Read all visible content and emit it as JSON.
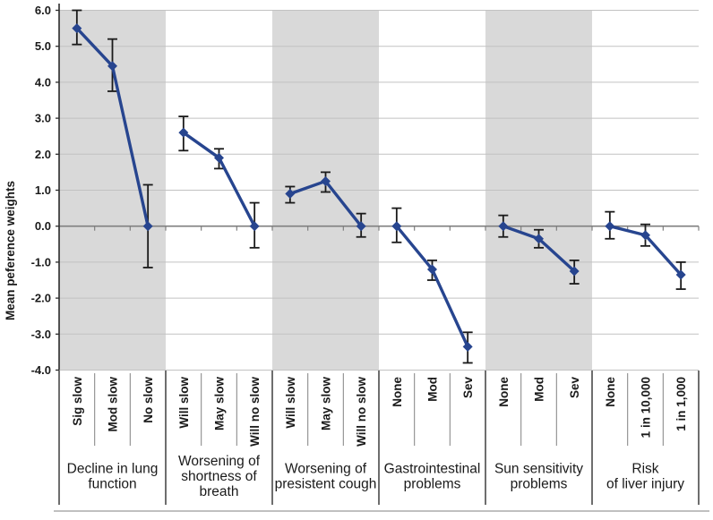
{
  "chart_data": {
    "type": "line",
    "title": "",
    "ylabel": "Mean peference weights",
    "ylim": [
      -4.0,
      6.0
    ],
    "ytick_values": [
      6,
      5,
      4,
      3,
      2,
      1,
      0,
      -1,
      -2,
      -3,
      -4
    ],
    "ytick_labels": [
      "6.0",
      "5.0",
      "4.0",
      "3.0",
      "2.0",
      "1.0",
      "0.0",
      "-1.0",
      "-2.0",
      "-3.0",
      "-4.0"
    ],
    "marker": "diamond",
    "grid": true,
    "legend": "none",
    "colors": {
      "series": "#27458f",
      "errorbar": "#1a1a1a",
      "band": "#d9d9d9",
      "gridline": "#c2c2c2",
      "zero_axis": "#7f7f7f",
      "y_axis": "#2b2b2b",
      "category_separator": "#8c8c8c",
      "group_separator": "#4a4a4a",
      "bottom_border": "#9a9a9a"
    },
    "groups": [
      {
        "label_lines": [
          "Decline in lung",
          "function"
        ],
        "shaded": true,
        "categories": [
          "Sig slow",
          "Mod slow",
          "No slow"
        ],
        "values": [
          5.5,
          4.45,
          0.0
        ],
        "ci_low": [
          5.05,
          3.75,
          -1.15
        ],
        "ci_high": [
          6.0,
          5.2,
          1.15
        ]
      },
      {
        "label_lines": [
          "Worsening of",
          "shortness of",
          "breath"
        ],
        "shaded": false,
        "categories": [
          "Will slow",
          "May slow",
          "Will no slow"
        ],
        "values": [
          2.6,
          1.9,
          0.0
        ],
        "ci_low": [
          2.1,
          1.6,
          -0.6
        ],
        "ci_high": [
          3.05,
          2.15,
          0.65
        ]
      },
      {
        "label_lines": [
          "Worsening of",
          "presistent cough"
        ],
        "shaded": true,
        "categories": [
          "Will slow",
          "May slow",
          "Will no slow"
        ],
        "values": [
          0.9,
          1.25,
          0.0
        ],
        "ci_low": [
          0.65,
          0.95,
          -0.3
        ],
        "ci_high": [
          1.1,
          1.5,
          0.35
        ]
      },
      {
        "label_lines": [
          "Gastrointestinal",
          "problems"
        ],
        "shaded": false,
        "categories": [
          "None",
          "Mod",
          "Sev"
        ],
        "values": [
          0.0,
          -1.2,
          -3.35
        ],
        "ci_low": [
          -0.45,
          -1.5,
          -3.8
        ],
        "ci_high": [
          0.5,
          -0.95,
          -2.95
        ]
      },
      {
        "label_lines": [
          "Sun sensitivity",
          "problems"
        ],
        "shaded": true,
        "categories": [
          "None",
          "Mod",
          "Sev"
        ],
        "values": [
          0.0,
          -0.35,
          -1.25
        ],
        "ci_low": [
          -0.3,
          -0.6,
          -1.6
        ],
        "ci_high": [
          0.3,
          -0.1,
          -0.95
        ]
      },
      {
        "label_lines": [
          "Risk",
          "of liver injury"
        ],
        "shaded": false,
        "categories": [
          "None",
          "1 in 10,000",
          "1 in 1,000"
        ],
        "values": [
          0.0,
          -0.25,
          -1.35
        ],
        "ci_low": [
          -0.35,
          -0.55,
          -1.75
        ],
        "ci_high": [
          0.4,
          0.05,
          -1.0
        ]
      }
    ]
  }
}
